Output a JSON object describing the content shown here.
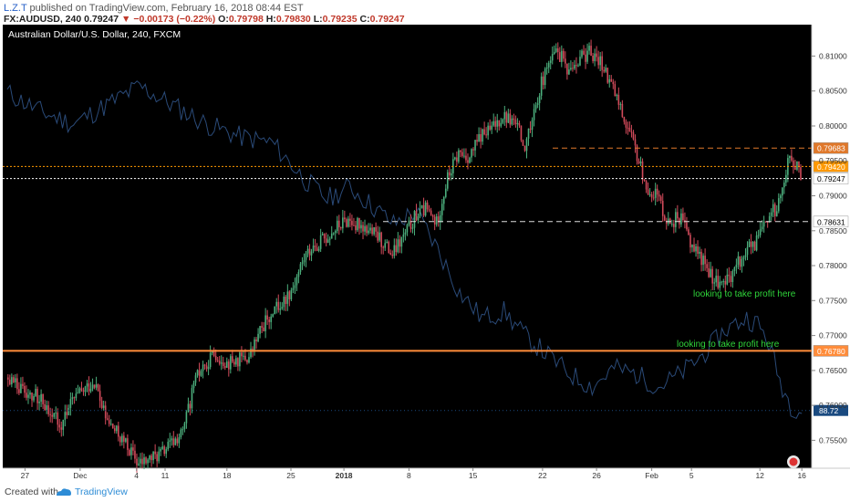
{
  "header": {
    "publisher": "L.Z.T",
    "published_text": "published on TradingView.com, February 16, 2018 08:44 EST",
    "symbol": "FX:AUDUSD, 240",
    "last": "0.79247",
    "arrow": "▼",
    "change": "−0.00173 (−0.22%)",
    "o_label": "O:",
    "o_value": "0.79798",
    "h_label": "H:",
    "h_value": "0.79830",
    "l_label": "L:",
    "l_value": "0.79235",
    "c_label": "C:",
    "c_value": "0.79247"
  },
  "chart_data": {
    "type": "candlestick",
    "title": "Australian Dollar/U.S. Dollar, 240, FXCM",
    "ylim": [
      0.751,
      0.8145
    ],
    "y_ticks": [
      0.81,
      0.805,
      0.8,
      0.795,
      0.79,
      0.785,
      0.78,
      0.775,
      0.77,
      0.765,
      0.76,
      0.755
    ],
    "y_tick_labels": [
      "0.81000",
      "0.80500",
      "0.80000",
      "0.79500",
      "0.79000",
      "0.78500",
      "0.78000",
      "0.77500",
      "0.77000",
      "0.76500",
      "0.76000",
      "0.75500"
    ],
    "x_labels": [
      "27",
      "Dec",
      "4",
      "11",
      "18",
      "25",
      "2018",
      "8",
      "15",
      "22",
      "26",
      "Feb",
      "5",
      "12",
      "16"
    ],
    "price_path": [
      {
        "d": 0,
        "p": 0.764
      },
      {
        "d": 3,
        "p": 0.761
      },
      {
        "d": 5,
        "p": 0.7575
      },
      {
        "d": 6,
        "p": 0.7605
      },
      {
        "d": 8,
        "p": 0.7635
      },
      {
        "d": 9,
        "p": 0.758
      },
      {
        "d": 11,
        "p": 0.754
      },
      {
        "d": 12,
        "p": 0.7515
      },
      {
        "d": 14,
        "p": 0.753
      },
      {
        "d": 16,
        "p": 0.756
      },
      {
        "d": 17,
        "p": 0.763
      },
      {
        "d": 18,
        "p": 0.766
      },
      {
        "d": 19,
        "p": 0.7675
      },
      {
        "d": 20,
        "p": 0.766
      },
      {
        "d": 22,
        "p": 0.7668
      },
      {
        "d": 23,
        "p": 0.7705
      },
      {
        "d": 24,
        "p": 0.7735
      },
      {
        "d": 25,
        "p": 0.7745
      },
      {
        "d": 26,
        "p": 0.777
      },
      {
        "d": 27,
        "p": 0.781
      },
      {
        "d": 28,
        "p": 0.783
      },
      {
        "d": 29,
        "p": 0.784
      },
      {
        "d": 30,
        "p": 0.7855
      },
      {
        "d": 31,
        "p": 0.7865
      },
      {
        "d": 32,
        "p": 0.786
      },
      {
        "d": 33,
        "p": 0.785
      },
      {
        "d": 34,
        "p": 0.7835
      },
      {
        "d": 35,
        "p": 0.7815
      },
      {
        "d": 36,
        "p": 0.784
      },
      {
        "d": 37,
        "p": 0.787
      },
      {
        "d": 38,
        "p": 0.788
      },
      {
        "d": 39,
        "p": 0.786
      },
      {
        "d": 40,
        "p": 0.7925
      },
      {
        "d": 41,
        "p": 0.796
      },
      {
        "d": 42,
        "p": 0.7955
      },
      {
        "d": 43,
        "p": 0.7985
      },
      {
        "d": 44,
        "p": 0.7995
      },
      {
        "d": 45,
        "p": 0.8015
      },
      {
        "d": 46,
        "p": 0.8005
      },
      {
        "d": 47,
        "p": 0.7975
      },
      {
        "d": 48,
        "p": 0.8035
      },
      {
        "d": 49,
        "p": 0.8085
      },
      {
        "d": 50,
        "p": 0.8105
      },
      {
        "d": 51,
        "p": 0.808
      },
      {
        "d": 52,
        "p": 0.81
      },
      {
        "d": 53,
        "p": 0.8105
      },
      {
        "d": 54,
        "p": 0.809
      },
      {
        "d": 55,
        "p": 0.8055
      },
      {
        "d": 56,
        "p": 0.801
      },
      {
        "d": 57,
        "p": 0.7965
      },
      {
        "d": 58,
        "p": 0.7915
      },
      {
        "d": 59,
        "p": 0.79
      },
      {
        "d": 60,
        "p": 0.786
      },
      {
        "d": 61,
        "p": 0.787
      },
      {
        "d": 62,
        "p": 0.7835
      },
      {
        "d": 63,
        "p": 0.781
      },
      {
        "d": 64,
        "p": 0.7785
      },
      {
        "d": 65,
        "p": 0.777
      },
      {
        "d": 66,
        "p": 0.7795
      },
      {
        "d": 67,
        "p": 0.782
      },
      {
        "d": 68,
        "p": 0.7835
      },
      {
        "d": 69,
        "p": 0.7865
      },
      {
        "d": 70,
        "p": 0.789
      },
      {
        "d": 71,
        "p": 0.7965
      },
      {
        "d": 72,
        "p": 0.7925
      }
    ],
    "dxy_path": [
      {
        "d": 0,
        "v": 93.8
      },
      {
        "d": 3,
        "v": 93.5
      },
      {
        "d": 6,
        "v": 93.3
      },
      {
        "d": 9,
        "v": 93.6
      },
      {
        "d": 12,
        "v": 93.9
      },
      {
        "d": 15,
        "v": 93.6
      },
      {
        "d": 18,
        "v": 93.3
      },
      {
        "d": 21,
        "v": 93.1
      },
      {
        "d": 24,
        "v": 93.0
      },
      {
        "d": 27,
        "v": 92.4
      },
      {
        "d": 29,
        "v": 92.1
      },
      {
        "d": 31,
        "v": 92.3
      },
      {
        "d": 33,
        "v": 92.0
      },
      {
        "d": 35,
        "v": 91.7
      },
      {
        "d": 37,
        "v": 91.9
      },
      {
        "d": 39,
        "v": 91.3
      },
      {
        "d": 41,
        "v": 90.6
      },
      {
        "d": 43,
        "v": 90.2
      },
      {
        "d": 45,
        "v": 90.3
      },
      {
        "d": 47,
        "v": 89.9
      },
      {
        "d": 49,
        "v": 89.6
      },
      {
        "d": 51,
        "v": 89.3
      },
      {
        "d": 53,
        "v": 89.1
      },
      {
        "d": 55,
        "v": 89.4
      },
      {
        "d": 57,
        "v": 89.3
      },
      {
        "d": 59,
        "v": 89.1
      },
      {
        "d": 61,
        "v": 89.3
      },
      {
        "d": 63,
        "v": 89.6
      },
      {
        "d": 65,
        "v": 90.0
      },
      {
        "d": 67,
        "v": 90.2
      },
      {
        "d": 68,
        "v": 90.1
      },
      {
        "d": 69,
        "v": 89.8
      },
      {
        "d": 70,
        "v": 89.2
      },
      {
        "d": 71,
        "v": 88.8
      },
      {
        "d": 72,
        "v": 88.72
      }
    ],
    "horizontal_levels": [
      {
        "price": 0.79683,
        "label": "0.79683",
        "color": "#e0782a",
        "style": "dashed"
      },
      {
        "price": 0.7942,
        "label": "0.79420",
        "color": "#ff9900",
        "style": "dotted"
      },
      {
        "price": 0.79247,
        "label": "0.79247",
        "color": "#ffffff",
        "style": "dotted"
      },
      {
        "price": 0.78631,
        "label": "0.78631",
        "color": "#dddddd",
        "style": "dashed"
      },
      {
        "price": 0.7678,
        "label": "0.76780",
        "color": "#ff8c3a",
        "style": "solid"
      }
    ],
    "dxy_level": {
      "value": 88.72,
      "label": "88.72",
      "color": "#1a4a80"
    },
    "annotations": [
      {
        "text": "looking to take profit here",
        "color": "#2fd43a"
      },
      {
        "text": "looking to take profit here",
        "color": "#2fd43a"
      }
    ],
    "colors": {
      "up": "#4caf7d",
      "down": "#d04a5a",
      "background": "#000000",
      "dxy": "#2a4a78"
    }
  },
  "footer": {
    "created": "Created with",
    "brand": "TradingView"
  }
}
